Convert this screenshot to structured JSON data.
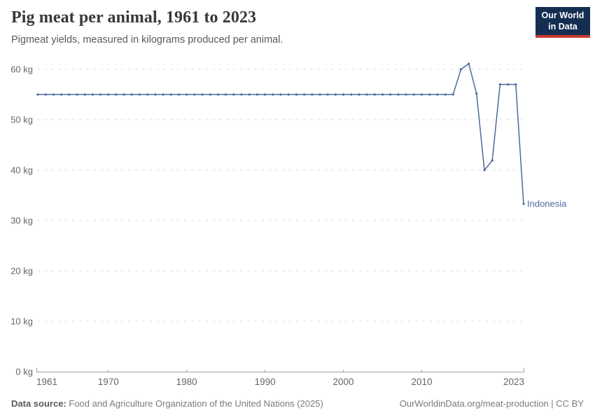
{
  "header": {
    "title": "Pig meat per animal, 1961 to 2023",
    "subtitle": "Pigmeat yields, measured in kilograms produced per animal."
  },
  "logo": {
    "line1": "Our World",
    "line2": "in Data"
  },
  "colors": {
    "line": "#4C6A9C",
    "logo_bg": "#142E52",
    "logo_bar": "#C23B33",
    "grid": "#DCDCDC",
    "axis": "#A3A3A3",
    "tick_label": "#666666",
    "title": "#383838",
    "subtitle": "#5A5A5A"
  },
  "chart_data": {
    "type": "line",
    "title": "Pig meat per animal, 1961 to 2023",
    "subtitle": "Pigmeat yields, measured in kilograms produced per animal.",
    "xlabel": "",
    "ylabel": "kg",
    "xlim": [
      1961,
      2023
    ],
    "ylim": [
      0,
      60
    ],
    "x_ticks": [
      1961,
      1970,
      1980,
      1990,
      2000,
      2010,
      2023
    ],
    "y_ticks": [
      0,
      10,
      20,
      30,
      40,
      50,
      60
    ],
    "y_tick_format": "{v} kg",
    "grid": "horizontal-dashed",
    "legend": "series-end-label",
    "series": [
      {
        "name": "Indonesia",
        "color": "#4C6A9C",
        "x": [
          1961,
          1962,
          1963,
          1964,
          1965,
          1966,
          1967,
          1968,
          1969,
          1970,
          1971,
          1972,
          1973,
          1974,
          1975,
          1976,
          1977,
          1978,
          1979,
          1980,
          1981,
          1982,
          1983,
          1984,
          1985,
          1986,
          1987,
          1988,
          1989,
          1990,
          1991,
          1992,
          1993,
          1994,
          1995,
          1996,
          1997,
          1998,
          1999,
          2000,
          2001,
          2002,
          2003,
          2004,
          2005,
          2006,
          2007,
          2008,
          2009,
          2010,
          2011,
          2012,
          2013,
          2014,
          2015,
          2016,
          2017,
          2018,
          2019,
          2020,
          2021,
          2022,
          2023
        ],
        "values": [
          55,
          55,
          55,
          55,
          55,
          55,
          55,
          55,
          55,
          55,
          55,
          55,
          55,
          55,
          55,
          55,
          55,
          55,
          55,
          55,
          55,
          55,
          55,
          55,
          55,
          55,
          55,
          55,
          55,
          55,
          55,
          55,
          55,
          55,
          55,
          55,
          55,
          55,
          55,
          55,
          55,
          55,
          55,
          55,
          55,
          55,
          55,
          55,
          55,
          55,
          55,
          55,
          55,
          55,
          60,
          61.1,
          55.2,
          40,
          41.9,
          57,
          57,
          57,
          33.3
        ]
      }
    ]
  },
  "footer": {
    "source_label": "Data source:",
    "source_text": "Food and Agriculture Organization of the United Nations (2025)",
    "attribution": "OurWorldinData.org/meat-production | CC BY"
  }
}
